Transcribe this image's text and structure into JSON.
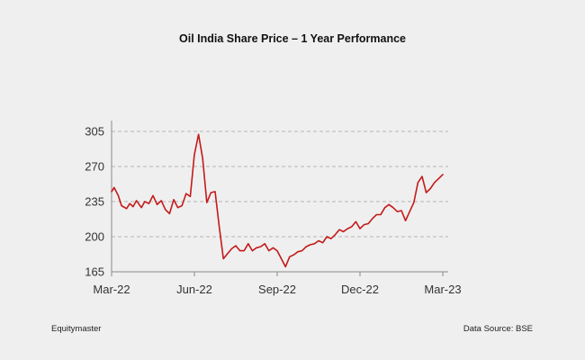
{
  "chart_data": {
    "type": "line",
    "title": "Oil India Share Price – 1 Year Performance",
    "xlabel": "",
    "ylabel": "",
    "ylim": [
      165,
      305
    ],
    "yticks": [
      305,
      270,
      235,
      200,
      165
    ],
    "xticks": [
      "Mar-22",
      "Jun-22",
      "Sep-22",
      "Dec-22",
      "Mar-23"
    ],
    "grid": "horizontal dashed",
    "colors": {
      "line": "#c41a1a",
      "grid": "#b5b5b5",
      "axis": "#8a8a8a"
    },
    "series": [
      {
        "name": "Oil India Share Price",
        "x": [
          0,
          0.03,
          0.08,
          0.12,
          0.18,
          0.22,
          0.26,
          0.3,
          0.36,
          0.4,
          0.45,
          0.5,
          0.55,
          0.6,
          0.65,
          0.7,
          0.75,
          0.8,
          0.85,
          0.9,
          0.95,
          1.0,
          1.05,
          1.1,
          1.15,
          1.2,
          1.25,
          1.3,
          1.35,
          1.4,
          1.45,
          1.5,
          1.55,
          1.6,
          1.65,
          1.7,
          1.75,
          1.8,
          1.85,
          1.9,
          1.95,
          2.0,
          2.05,
          2.1,
          2.15,
          2.2,
          2.25,
          2.3,
          2.35,
          2.4,
          2.45,
          2.5,
          2.55,
          2.6,
          2.65,
          2.7,
          2.75,
          2.8,
          2.85,
          2.9,
          2.95,
          3.0,
          3.05,
          3.1,
          3.15,
          3.2,
          3.25,
          3.3,
          3.35,
          3.4,
          3.45,
          3.5,
          3.55,
          3.6,
          3.65,
          3.7,
          3.75,
          3.8,
          3.85,
          3.9,
          3.95,
          4.0
        ],
        "values": [
          245,
          249,
          241,
          231,
          228,
          233,
          230,
          236,
          229,
          235,
          233,
          241,
          232,
          236,
          227,
          223,
          237,
          229,
          231,
          243,
          240,
          282,
          302,
          278,
          234,
          244,
          245,
          210,
          178,
          183,
          188,
          191,
          186,
          186,
          193,
          186,
          189,
          190,
          193,
          186,
          189,
          186,
          178,
          170,
          180,
          182,
          185,
          186,
          190,
          192,
          193,
          196,
          194,
          200,
          198,
          202,
          207,
          205,
          208,
          210,
          215,
          208,
          212,
          213,
          218,
          222,
          222,
          229,
          232,
          229,
          225,
          226,
          216,
          225,
          234,
          254,
          260,
          244,
          248,
          254,
          258,
          262
        ]
      }
    ]
  },
  "footer": {
    "source_left": "Equitymaster",
    "source_right": "Data Source: BSE"
  }
}
